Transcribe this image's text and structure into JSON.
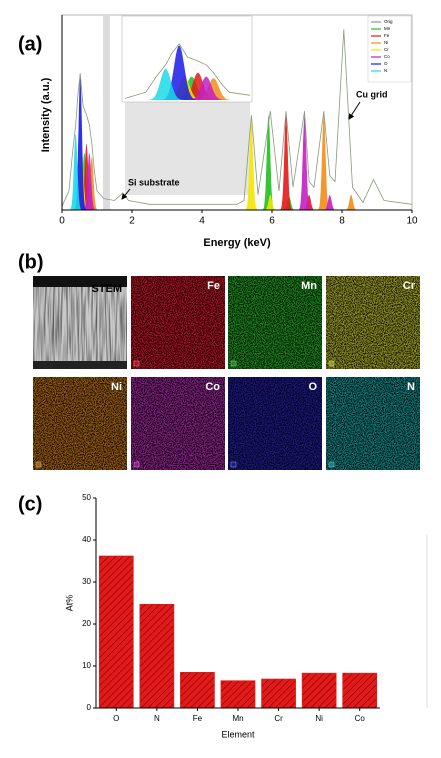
{
  "chart_data": [
    {
      "type": "spectrum",
      "label": "(a)",
      "xlabel": "Energy (keV)",
      "ylabel": "Intensity (a.u.)",
      "xlim": [
        0,
        10
      ],
      "xticks": [
        0,
        2,
        4,
        6,
        8,
        10
      ],
      "ylim": [
        0,
        100
      ],
      "inset_xlim": [
        0,
        1.2
      ],
      "annotations": [
        {
          "text": "Si substrate",
          "x": 1.74
        },
        {
          "text": "Cu grid",
          "x": 8.05
        }
      ],
      "series": [
        {
          "name": "Orig",
          "color": "#8a9a7a",
          "x": [
            0,
            0.2,
            0.3,
            0.39,
            0.45,
            0.52,
            0.6,
            0.7,
            0.78,
            0.85,
            0.93,
            1.0,
            1.2,
            1.5,
            1.74,
            1.9,
            2.5,
            3,
            4,
            5,
            5.2,
            5.41,
            5.6,
            5.95,
            6.2,
            6.4,
            6.6,
            6.93,
            7.06,
            7.2,
            7.48,
            7.65,
            7.8,
            8.05,
            8.3,
            8.6,
            8.9,
            9.2,
            10
          ],
          "values": [
            2,
            10,
            30,
            45,
            60,
            72,
            55,
            50,
            45,
            35,
            20,
            10,
            6,
            5,
            9,
            5,
            3,
            3,
            3,
            3,
            5,
            50,
            8,
            52,
            10,
            52,
            12,
            52,
            15,
            12,
            52,
            18,
            15,
            95,
            12,
            4,
            16,
            5,
            3
          ]
        },
        {
          "name": "Mn",
          "color": "#1fbf1f",
          "x": [
            0.64,
            5.9,
            6.49
          ],
          "values": [
            30,
            50,
            7
          ]
        },
        {
          "name": "Fe",
          "color": "#e31a1a",
          "x": [
            0.7,
            6.4,
            7.06
          ],
          "values": [
            35,
            50,
            8
          ]
        },
        {
          "name": "Ni",
          "color": "#f28c1a",
          "x": [
            0.85,
            7.48,
            8.26
          ],
          "values": [
            28,
            50,
            8
          ]
        },
        {
          "name": "Cr",
          "color": "#f2e600",
          "x": [
            0.57,
            5.41,
            5.95
          ],
          "values": [
            30,
            48,
            8
          ]
        },
        {
          "name": "Co",
          "color": "#c21fc2",
          "x": [
            0.78,
            6.93,
            7.65
          ],
          "values": [
            30,
            50,
            8
          ]
        },
        {
          "name": "O",
          "color": "#1a1ae6",
          "x": [
            0.52
          ],
          "values": [
            70
          ]
        },
        {
          "name": "N",
          "color": "#1ad9e6",
          "x": [
            0.39
          ],
          "values": [
            40
          ]
        }
      ]
    },
    {
      "type": "bar",
      "label": "(c)",
      "xlabel": "Element",
      "ylabel": "At%",
      "color": "#e31a1a",
      "categories": [
        "O",
        "N",
        "Fe",
        "Mn",
        "Cr",
        "Ni",
        "Co"
      ],
      "values": [
        36.2,
        24.7,
        8.5,
        6.5,
        6.9,
        8.3,
        8.3
      ],
      "ylim": [
        0,
        50
      ],
      "yticks": [
        0,
        10,
        20,
        30,
        40,
        50
      ]
    }
  ],
  "maps": {
    "label": "(b)",
    "tiles": [
      {
        "label": "STEM",
        "color": "#c8c8c8"
      },
      {
        "label": "Fe",
        "color": "#b01020"
      },
      {
        "label": "Mn",
        "color": "#1a8a1a"
      },
      {
        "label": "Cr",
        "color": "#9a9a20"
      },
      {
        "label": "Ni",
        "color": "#a06010"
      },
      {
        "label": "Co",
        "color": "#8a208a"
      },
      {
        "label": "O",
        "color": "#1a1a8a"
      },
      {
        "label": "N",
        "color": "#108080"
      }
    ]
  }
}
